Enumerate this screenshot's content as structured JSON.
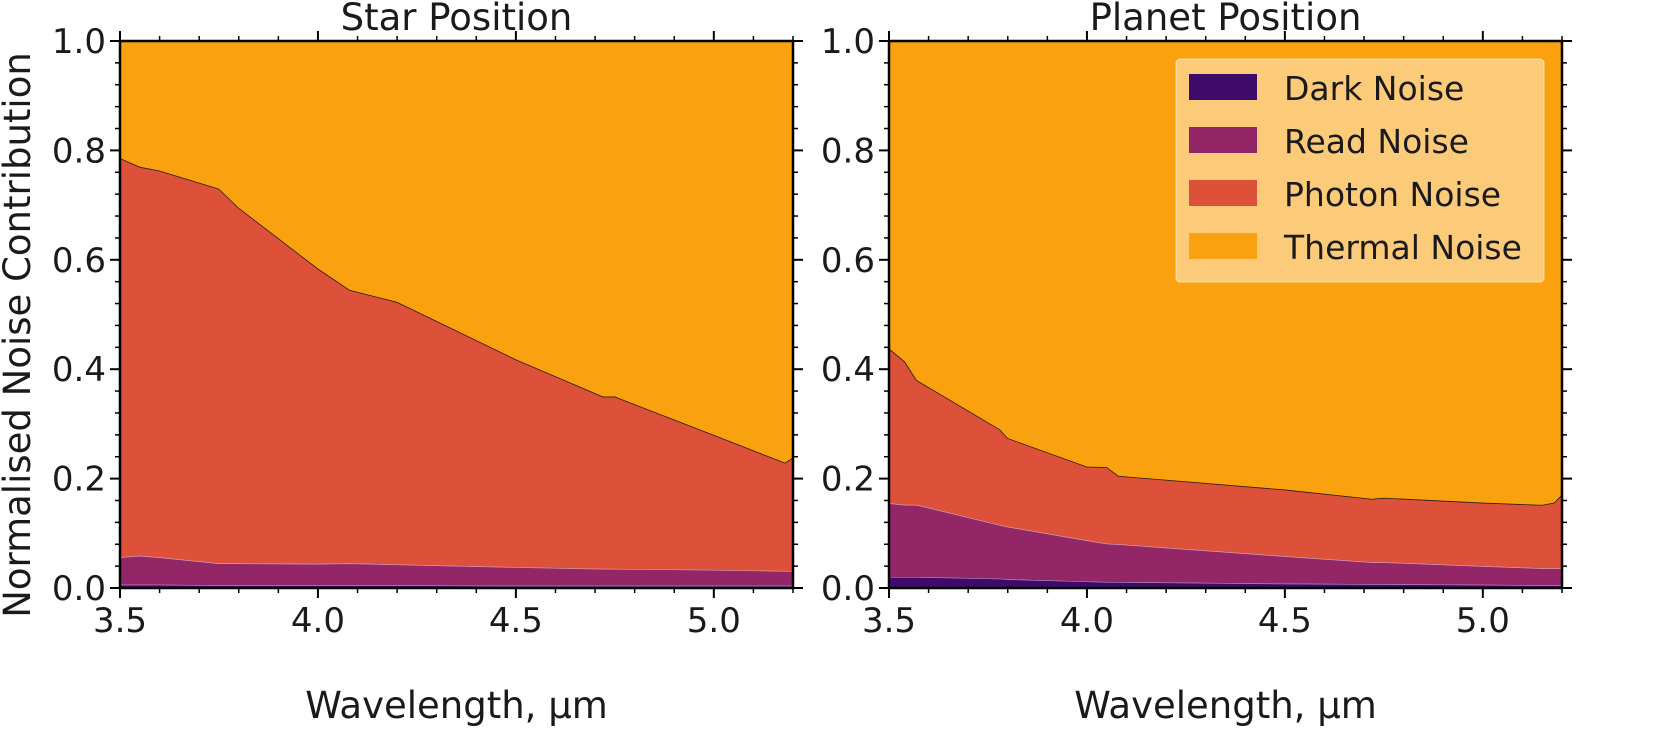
{
  "chart_data": {
    "type": "area",
    "stacked": true,
    "ylabel": "Normalised Noise Contribution",
    "xlabel": "Wavelength, μm",
    "xlim": [
      3.5,
      5.2
    ],
    "ylim": [
      0.0,
      1.0
    ],
    "xticks": [
      3.5,
      4.0,
      4.5,
      5.0
    ],
    "yticks": [
      0.0,
      0.2,
      0.4,
      0.6,
      0.8,
      1.0
    ],
    "xtick_labels": [
      "3.5",
      "4.0",
      "4.5",
      "5.0"
    ],
    "ytick_labels": [
      "0.0",
      "0.2",
      "0.4",
      "0.6",
      "0.8",
      "1.0"
    ],
    "colors": {
      "Dark Noise": "#3f0b6b",
      "Read Noise": "#932667",
      "Photon Noise": "#dd513a",
      "Thermal Noise": "#f9a10e"
    },
    "legend": {
      "placement": "top-right",
      "entries": [
        "Dark Noise",
        "Read Noise",
        "Photon Noise",
        "Thermal Noise"
      ]
    },
    "panels": [
      {
        "title": "Star Position",
        "x": [
          3.5,
          3.55,
          3.6,
          3.75,
          3.8,
          4.0,
          4.08,
          4.2,
          4.5,
          4.72,
          4.75,
          5.0,
          5.18,
          5.2
        ],
        "series": [
          {
            "name": "Dark Noise",
            "values": [
              0.006,
              0.006,
              0.006,
              0.005,
              0.005,
              0.005,
              0.005,
              0.005,
              0.004,
              0.004,
              0.004,
              0.004,
              0.004,
              0.004
            ]
          },
          {
            "name": "Read Noise",
            "values": [
              0.05,
              0.053,
              0.05,
              0.04,
              0.04,
              0.039,
              0.04,
              0.038,
              0.034,
              0.031,
              0.031,
              0.029,
              0.027,
              0.027
            ]
          },
          {
            "name": "Photon Noise",
            "values": [
              0.73,
              0.711,
              0.707,
              0.685,
              0.65,
              0.54,
              0.5,
              0.48,
              0.38,
              0.315,
              0.315,
              0.247,
              0.198,
              0.208
            ]
          },
          {
            "name": "Thermal Noise",
            "values": [
              0.214,
              0.23,
              0.237,
              0.27,
              0.305,
              0.416,
              0.455,
              0.477,
              0.582,
              0.65,
              0.65,
              0.72,
              0.771,
              0.761
            ]
          }
        ]
      },
      {
        "title": "Planet Position",
        "x": [
          3.5,
          3.54,
          3.57,
          3.78,
          3.8,
          4.0,
          4.05,
          4.08,
          4.5,
          4.72,
          4.75,
          5.0,
          5.15,
          5.18,
          5.2
        ],
        "series": [
          {
            "name": "Dark Noise",
            "values": [
              0.02,
              0.02,
              0.02,
              0.017,
              0.016,
              0.012,
              0.011,
              0.011,
              0.008,
              0.007,
              0.007,
              0.006,
              0.005,
              0.005,
              0.005
            ]
          },
          {
            "name": "Read Noise",
            "values": [
              0.135,
              0.132,
              0.132,
              0.098,
              0.096,
              0.075,
              0.07,
              0.069,
              0.05,
              0.04,
              0.04,
              0.034,
              0.031,
              0.031,
              0.031
            ]
          },
          {
            "name": "Photon Noise",
            "values": [
              0.283,
              0.262,
              0.228,
              0.175,
              0.162,
              0.135,
              0.14,
              0.125,
              0.122,
              0.116,
              0.118,
              0.116,
              0.116,
              0.12,
              0.135
            ]
          },
          {
            "name": "Thermal Noise",
            "values": [
              0.562,
              0.586,
              0.62,
              0.71,
              0.726,
              0.778,
              0.779,
              0.795,
              0.82,
              0.837,
              0.835,
              0.844,
              0.848,
              0.844,
              0.829
            ]
          }
        ]
      }
    ]
  }
}
